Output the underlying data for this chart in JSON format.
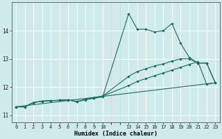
{
  "xlabel": "Humidex (Indice chaleur)",
  "background_color": "#ceeaea",
  "grid_color_major": "#ffffff",
  "grid_color_minor": "#e0f0f0",
  "line_color": "#1a6b60",
  "x_ticks_labels": [
    0,
    1,
    2,
    3,
    4,
    5,
    6,
    7,
    8,
    9,
    10,
    13,
    14,
    15,
    16,
    17,
    18,
    19,
    20,
    21,
    22,
    23
  ],
  "x_ticks_pos": [
    0,
    1,
    2,
    3,
    4,
    5,
    6,
    7,
    8,
    9,
    10,
    13,
    14,
    15,
    16,
    17,
    18,
    19,
    20,
    21,
    22,
    23
  ],
  "ylim": [
    10.75,
    15.0
  ],
  "yticks": [
    11,
    12,
    13,
    14
  ],
  "series": [
    {
      "x": [
        0,
        1,
        2,
        3,
        4,
        5,
        6,
        7,
        8,
        9,
        10,
        13,
        14,
        15,
        16,
        17,
        18,
        19,
        20,
        21,
        22,
        23
      ],
      "y": [
        11.3,
        11.3,
        11.45,
        11.5,
        11.52,
        11.53,
        11.55,
        11.48,
        11.55,
        11.6,
        11.65,
        14.6,
        14.05,
        14.05,
        13.95,
        14.0,
        14.25,
        13.55,
        13.05,
        12.85,
        12.85,
        12.15
      ],
      "marker": true
    },
    {
      "x": [
        0,
        1,
        2,
        3,
        4,
        5,
        6,
        7,
        8,
        9,
        10,
        13,
        14,
        15,
        16,
        17,
        18,
        19,
        20,
        21,
        22,
        23
      ],
      "y": [
        11.3,
        11.3,
        11.45,
        11.5,
        11.52,
        11.53,
        11.55,
        11.48,
        11.56,
        11.62,
        11.68,
        12.38,
        12.55,
        12.65,
        12.75,
        12.82,
        12.92,
        13.0,
        13.0,
        12.85,
        12.85,
        12.15
      ],
      "marker": true
    },
    {
      "x": [
        0,
        1,
        2,
        3,
        4,
        5,
        6,
        7,
        8,
        9,
        10,
        13,
        14,
        15,
        16,
        17,
        18,
        19,
        20,
        21,
        22,
        23
      ],
      "y": [
        11.3,
        11.3,
        11.45,
        11.5,
        11.52,
        11.53,
        11.55,
        11.48,
        11.56,
        11.62,
        11.68,
        12.05,
        12.2,
        12.3,
        12.4,
        12.5,
        12.6,
        12.7,
        12.8,
        12.9,
        12.1,
        12.15
      ],
      "marker": true
    },
    {
      "x": [
        0,
        23
      ],
      "y": [
        11.3,
        12.15
      ],
      "marker": false
    }
  ]
}
